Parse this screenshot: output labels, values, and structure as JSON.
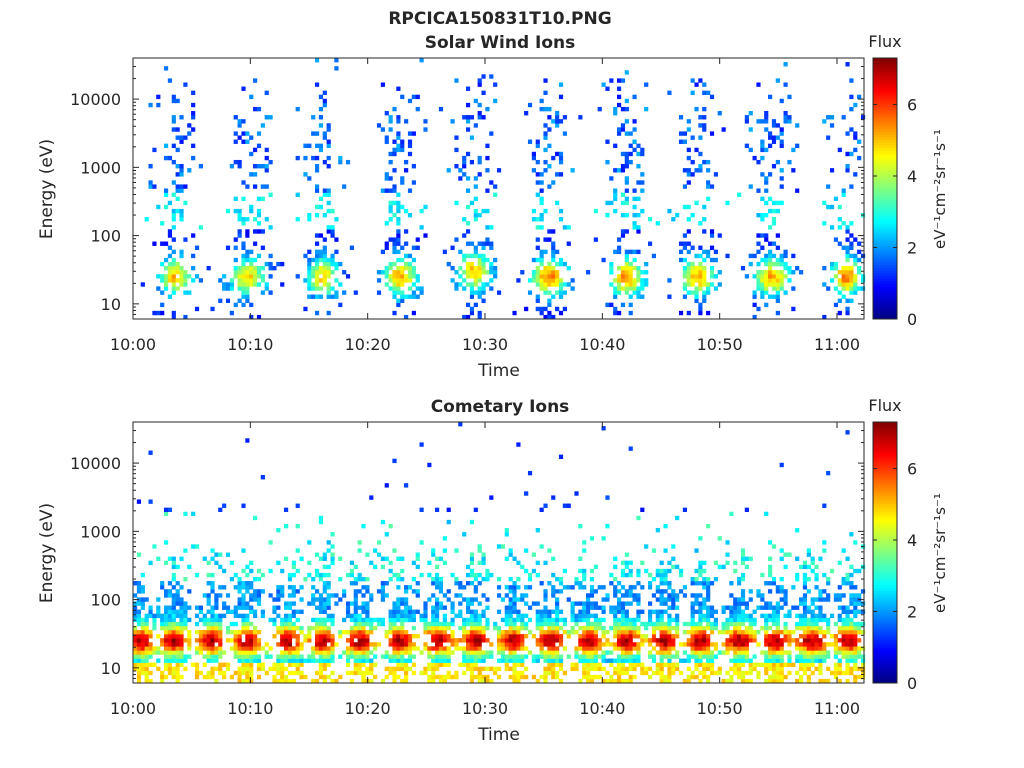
{
  "figure": {
    "title": "RPCICA150831T10.PNG"
  },
  "chart_data": [
    {
      "type": "heatmap",
      "title": "Solar Wind Ions",
      "xlabel": "Time",
      "ylabel": "Energy (eV)",
      "y_scale": "log",
      "ylim": [
        6,
        40000
      ],
      "x_ticks": [
        "10:00",
        "10:10",
        "10:20",
        "10:30",
        "10:40",
        "10:50",
        "11:00"
      ],
      "x_tick_minutes_after_10": [
        0,
        10,
        20,
        30,
        40,
        50,
        60
      ],
      "xlim_minutes_after_10": [
        0,
        62.3
      ],
      "y_ticks": [
        10,
        100,
        1000,
        10000
      ],
      "y_tick_labels": [
        "10",
        "100",
        "1000",
        "10000"
      ],
      "colorbar": {
        "label": "eV⁻¹cm⁻²sr⁻¹s⁻¹",
        "title": "Flux",
        "range": [
          0,
          7.3
        ],
        "ticks": [
          0,
          2,
          4,
          6
        ]
      },
      "grid": false,
      "bursts": [
        {
          "center_min": 3.4,
          "half_width_min": 1.4,
          "peak_energy_ev": 25,
          "peak_flux": 5.0
        },
        {
          "center_min": 9.6,
          "half_width_min": 1.6,
          "peak_energy_ev": 25,
          "peak_flux": 4.8
        },
        {
          "center_min": 16.0,
          "half_width_min": 1.4,
          "peak_energy_ev": 25,
          "peak_flux": 4.8
        },
        {
          "center_min": 22.6,
          "half_width_min": 1.5,
          "peak_energy_ev": 25,
          "peak_flux": 5.2
        },
        {
          "center_min": 28.9,
          "half_width_min": 1.5,
          "peak_energy_ev": 30,
          "peak_flux": 5.0
        },
        {
          "center_min": 35.3,
          "half_width_min": 1.5,
          "peak_energy_ev": 25,
          "peak_flux": 5.6
        },
        {
          "center_min": 41.9,
          "half_width_min": 1.5,
          "peak_energy_ev": 25,
          "peak_flux": 5.4
        },
        {
          "center_min": 48.0,
          "half_width_min": 1.5,
          "peak_energy_ev": 25,
          "peak_flux": 5.2
        },
        {
          "center_min": 54.3,
          "half_width_min": 1.6,
          "peak_energy_ev": 25,
          "peak_flux": 5.2
        },
        {
          "center_min": 60.6,
          "half_width_min": 1.3,
          "peak_energy_ev": 25,
          "peak_flux": 5.6
        }
      ]
    },
    {
      "type": "heatmap",
      "title": "Cometary Ions",
      "xlabel": "Time",
      "ylabel": "Energy (eV)",
      "y_scale": "log",
      "ylim": [
        6,
        40000
      ],
      "x_ticks": [
        "10:00",
        "10:10",
        "10:20",
        "10:30",
        "10:40",
        "10:50",
        "11:00"
      ],
      "x_tick_minutes_after_10": [
        0,
        10,
        20,
        30,
        40,
        50,
        60
      ],
      "xlim_minutes_after_10": [
        0,
        62.3
      ],
      "y_ticks": [
        10,
        100,
        1000,
        10000
      ],
      "y_tick_labels": [
        "10",
        "100",
        "1000",
        "10000"
      ],
      "colorbar": {
        "label": "eV⁻¹cm⁻²sr⁻¹s⁻¹",
        "title": "Flux",
        "range": [
          0,
          7.3
        ],
        "ticks": [
          0,
          2,
          4,
          6
        ]
      },
      "grid": false,
      "bursts": [
        {
          "center_min": 0.5,
          "half_width_min": 1.2,
          "peak_energy_ev": 25,
          "peak_flux": 7.0
        },
        {
          "center_min": 3.3,
          "half_width_min": 1.3,
          "peak_energy_ev": 25,
          "peak_flux": 7.0
        },
        {
          "center_min": 6.5,
          "half_width_min": 1.3,
          "peak_energy_ev": 25,
          "peak_flux": 7.0
        },
        {
          "center_min": 9.6,
          "half_width_min": 1.2,
          "peak_energy_ev": 25,
          "peak_flux": 7.0
        },
        {
          "center_min": 13.0,
          "half_width_min": 1.3,
          "peak_energy_ev": 25,
          "peak_flux": 7.0
        },
        {
          "center_min": 16.0,
          "half_width_min": 1.2,
          "peak_energy_ev": 25,
          "peak_flux": 7.0
        },
        {
          "center_min": 19.2,
          "half_width_min": 1.3,
          "peak_energy_ev": 25,
          "peak_flux": 7.0
        },
        {
          "center_min": 22.6,
          "half_width_min": 1.3,
          "peak_energy_ev": 25,
          "peak_flux": 7.0
        },
        {
          "center_min": 25.8,
          "half_width_min": 1.4,
          "peak_energy_ev": 25,
          "peak_flux": 7.0
        },
        {
          "center_min": 29.0,
          "half_width_min": 1.3,
          "peak_energy_ev": 25,
          "peak_flux": 7.0
        },
        {
          "center_min": 32.3,
          "half_width_min": 1.3,
          "peak_energy_ev": 25,
          "peak_flux": 7.0
        },
        {
          "center_min": 35.5,
          "half_width_min": 1.3,
          "peak_energy_ev": 25,
          "peak_flux": 7.0
        },
        {
          "center_min": 38.7,
          "half_width_min": 1.3,
          "peak_energy_ev": 25,
          "peak_flux": 7.0
        },
        {
          "center_min": 41.9,
          "half_width_min": 1.3,
          "peak_energy_ev": 25,
          "peak_flux": 7.0
        },
        {
          "center_min": 45.1,
          "half_width_min": 1.3,
          "peak_energy_ev": 25,
          "peak_flux": 7.0
        },
        {
          "center_min": 48.2,
          "half_width_min": 1.3,
          "peak_energy_ev": 25,
          "peak_flux": 7.0
        },
        {
          "center_min": 51.5,
          "half_width_min": 1.4,
          "peak_energy_ev": 25,
          "peak_flux": 7.0
        },
        {
          "center_min": 54.6,
          "half_width_min": 1.3,
          "peak_energy_ev": 25,
          "peak_flux": 7.0
        },
        {
          "center_min": 57.7,
          "half_width_min": 1.5,
          "peak_energy_ev": 25,
          "peak_flux": 7.0
        },
        {
          "center_min": 60.9,
          "half_width_min": 1.3,
          "peak_energy_ev": 25,
          "peak_flux": 7.0
        }
      ]
    }
  ]
}
